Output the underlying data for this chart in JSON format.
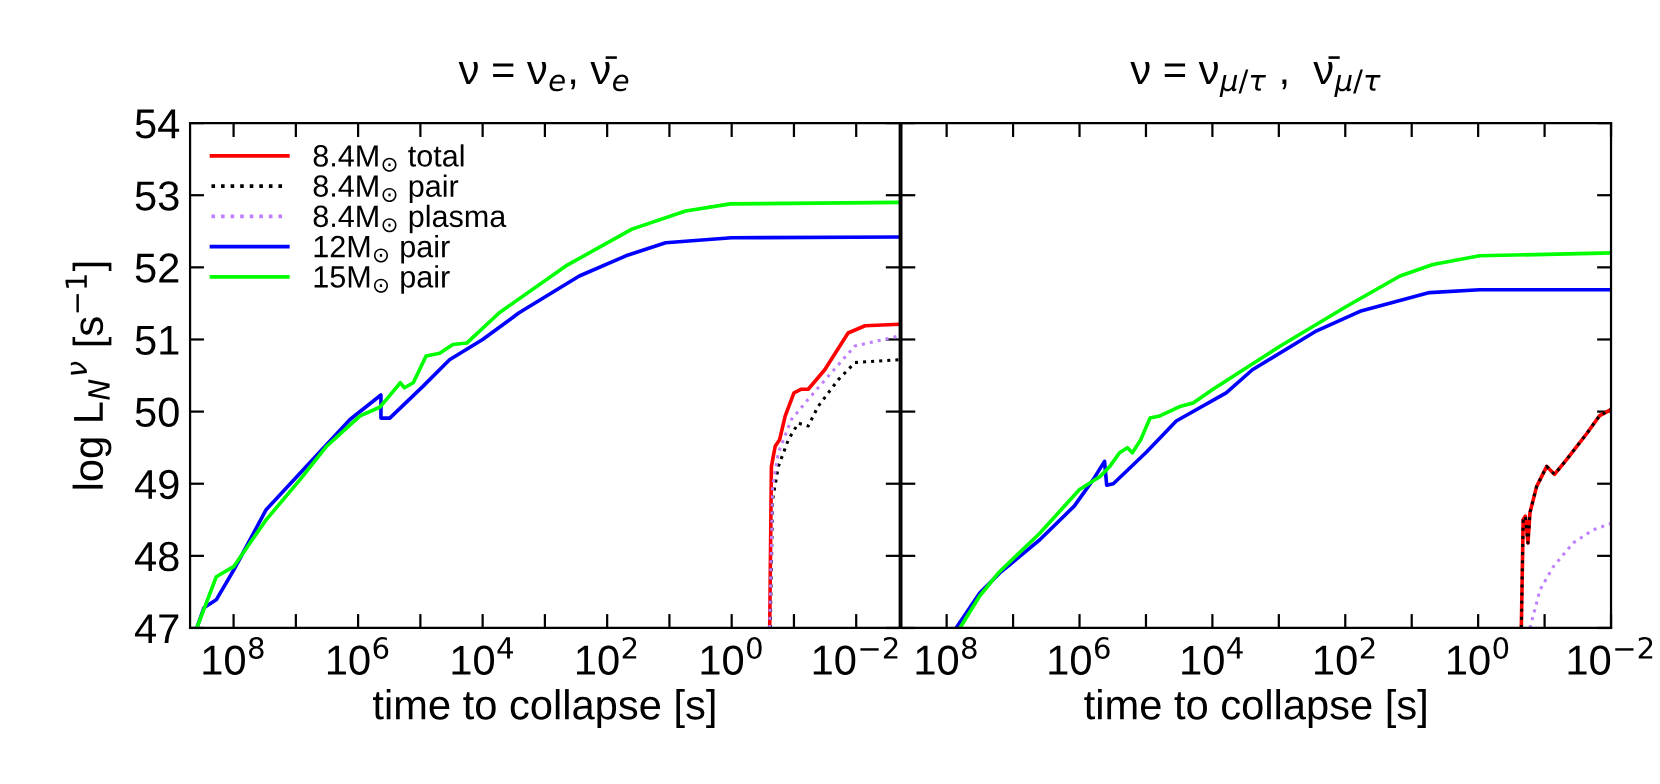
{
  "chart_data": [
    {
      "type": "line",
      "title": "ν = ν$_{e}$, ν̄$_{e}$",
      "xlabel": "time to collapse [s]",
      "ylabel": "log L$_{N}$$^{ν}$ [s$^{−1}$]",
      "log": "x",
      "xlim": [
        500000000.0,
        0.002
      ],
      "ylim": [
        47,
        54
      ],
      "xticks": [
        {
          "value": 100000000.0,
          "label": "10$^{8}$"
        },
        {
          "value": 10000000.0,
          "label": null
        },
        {
          "value": 1000000.0,
          "label": "10$^{6}$"
        },
        {
          "value": 100000.0,
          "label": null
        },
        {
          "value": 10000.0,
          "label": "10$^{4}$"
        },
        {
          "value": 1000.0,
          "label": null
        },
        {
          "value": 100,
          "label": "10$^{2}$"
        },
        {
          "value": 10,
          "label": null
        },
        {
          "value": 1,
          "label": "10$^{0}$"
        },
        {
          "value": 0.1,
          "label": null
        },
        {
          "value": 0.01,
          "label": "10$^{−2}$"
        }
      ],
      "yticks": [
        47,
        48,
        49,
        50,
        51,
        52,
        53,
        54
      ],
      "legend": "top left",
      "grid": false,
      "series": [
        {
          "name": "8.4M$_{⊙}$ total",
          "color": "#ff0000",
          "line_style": "solid",
          "x": [
            0.245,
            0.23,
            0.2,
            0.17,
            0.138,
            0.1,
            0.076,
            0.059,
            0.032,
            0.0135,
            0.0072,
            0.002
          ],
          "values": [
            47,
            49.24,
            49.52,
            49.61,
            49.94,
            50.26,
            50.31,
            50.31,
            50.58,
            51.09,
            51.19,
            51.21
          ]
        },
        {
          "name": "8.4M$_{⊙}$ pair",
          "color": "#000000",
          "line_style": "dotted",
          "x": [
            0.24,
            0.22,
            0.178,
            0.123,
            0.085,
            0.059,
            0.041,
            0.0195,
            0.0105,
            0.002
          ],
          "values": [
            47,
            48.78,
            49.24,
            49.61,
            49.84,
            49.8,
            50.07,
            50.44,
            50.68,
            50.72
          ]
        },
        {
          "name": "8.4M$_{⊙}$ plasma",
          "color": "#bf7fff",
          "line_style": "dotted",
          "x": [
            0.245,
            0.22,
            0.178,
            0.11,
            0.059,
            0.025,
            0.0105,
            0.002
          ],
          "values": [
            47,
            48.96,
            49.43,
            49.89,
            50.17,
            50.54,
            50.91,
            51.05
          ]
        },
        {
          "name": "12M$_{⊙}$ pair",
          "color": "#0000ff",
          "line_style": "solid",
          "x": [
            390000000.0,
            300000000.0,
            190000000.0,
            100000000.0,
            30000000.0,
            8500000.0,
            1350000.0,
            430000.0,
            430000.0,
            310000.0,
            91000.0,
            34000.0,
            10000.0,
            2600,
            280,
            50,
            11.5,
            1,
            0.002
          ],
          "values": [
            47,
            47.28,
            47.39,
            47.8,
            48.64,
            49.15,
            49.89,
            50.23,
            49.91,
            49.91,
            50.35,
            50.72,
            51.0,
            51.37,
            51.88,
            52.16,
            52.34,
            52.41,
            52.42
          ]
        },
        {
          "name": "15M$_{⊙}$ pair",
          "color": "#00ff00",
          "line_style": "solid",
          "x": [
            390000000.0,
            190000000.0,
            100000000.0,
            30000000.0,
            8500000.0,
            3200000.0,
            930000.0,
            450000.0,
            350000.0,
            210000.0,
            180000.0,
            130000.0,
            81000.0,
            49000.0,
            30000.0,
            18000.0,
            5400,
            460,
            40,
            5.5,
            1.05,
            0.002
          ],
          "values": [
            47,
            47.71,
            47.85,
            48.5,
            49.06,
            49.52,
            49.94,
            50.06,
            50.17,
            50.4,
            50.33,
            50.4,
            50.77,
            50.81,
            50.93,
            50.95,
            51.37,
            52.02,
            52.53,
            52.78,
            52.88,
            52.9
          ]
        }
      ]
    },
    {
      "type": "line",
      "title": "ν = ν$_{μ/τ}$ ,  ν̄$_{μ/τ}$",
      "xlabel": "time to collapse [s]",
      "log": "x",
      "xlim": [
        480000000.0,
        0.01
      ],
      "ylim": [
        47,
        54
      ],
      "tick_labels": "x",
      "xticks": [
        {
          "value": 100000000.0,
          "label": "10$^{8}$"
        },
        {
          "value": 10000000.0,
          "label": null
        },
        {
          "value": 1000000.0,
          "label": "10$^{6}$"
        },
        {
          "value": 100000.0,
          "label": null
        },
        {
          "value": 10000.0,
          "label": "10$^{4}$"
        },
        {
          "value": 1000.0,
          "label": null
        },
        {
          "value": 100,
          "label": "10$^{2}$"
        },
        {
          "value": 10,
          "label": null
        },
        {
          "value": 1,
          "label": "10$^{0}$"
        },
        {
          "value": 0.1,
          "label": null
        },
        {
          "value": 0.01,
          "label": "10$^{−2}$"
        }
      ],
      "yticks": [
        47,
        48,
        49,
        50,
        51,
        52,
        53,
        54
      ],
      "grid": false,
      "series": [
        {
          "color": "#ff0000",
          "line_style": "solid",
          "x": [
            0.224,
            0.21,
            0.195,
            0.178,
            0.166,
            0.132,
            0.093,
            0.071,
            0.047,
            0.023,
            0.015,
            0.01
          ],
          "values": [
            47,
            48.5,
            48.55,
            48.18,
            48.6,
            48.96,
            49.24,
            49.13,
            49.33,
            49.7,
            49.94,
            50.03
          ]
        },
        {
          "color": "#000000",
          "line_style": "dotted",
          "x": [
            0.224,
            0.21,
            0.195,
            0.178,
            0.166,
            0.132,
            0.093,
            0.071,
            0.047,
            0.023,
            0.015,
            0.01
          ],
          "values": [
            47,
            48.5,
            48.55,
            48.18,
            48.6,
            48.96,
            49.24,
            49.13,
            49.33,
            49.7,
            49.94,
            50.03
          ]
        },
        {
          "color": "#bf7fff",
          "line_style": "dotted",
          "x": [
            0.166,
            0.117,
            0.074,
            0.037,
            0.0186,
            0.01
          ],
          "values": [
            47,
            47.53,
            47.85,
            48.18,
            48.36,
            48.45
          ]
        },
        {
          "color": "#0000ff",
          "line_style": "solid",
          "x": [
            72000000.0,
            32000000.0,
            16000000.0,
            4000000.0,
            1200000.0,
            620000.0,
            420000.0,
            390000.0,
            310000.0,
            98000.0,
            35000.0,
            6200,
            2500,
            270,
            60,
            5.4,
            0.95,
            0.01
          ],
          "values": [
            47,
            47.48,
            47.76,
            48.22,
            48.69,
            49.06,
            49.31,
            48.98,
            49.0,
            49.44,
            49.87,
            50.26,
            50.58,
            51.12,
            51.39,
            51.65,
            51.69,
            51.69
          ]
        },
        {
          "color": "#00ff00",
          "line_style": "solid",
          "x": [
            63000000.0,
            32000000.0,
            16000000.0,
            4000000.0,
            1000000.0,
            490000.0,
            350000.0,
            250000.0,
            190000.0,
            160000.0,
            120000.0,
            87000.0,
            62000.0,
            31000.0,
            19500.0,
            9800,
            950,
            95,
            15,
            4.8,
            0.95,
            0.01
          ],
          "values": [
            47,
            47.44,
            47.78,
            48.31,
            48.92,
            49.1,
            49.24,
            49.43,
            49.5,
            49.43,
            49.61,
            49.91,
            49.94,
            50.07,
            50.12,
            50.31,
            50.91,
            51.46,
            51.88,
            52.04,
            52.16,
            52.2
          ]
        }
      ]
    }
  ]
}
